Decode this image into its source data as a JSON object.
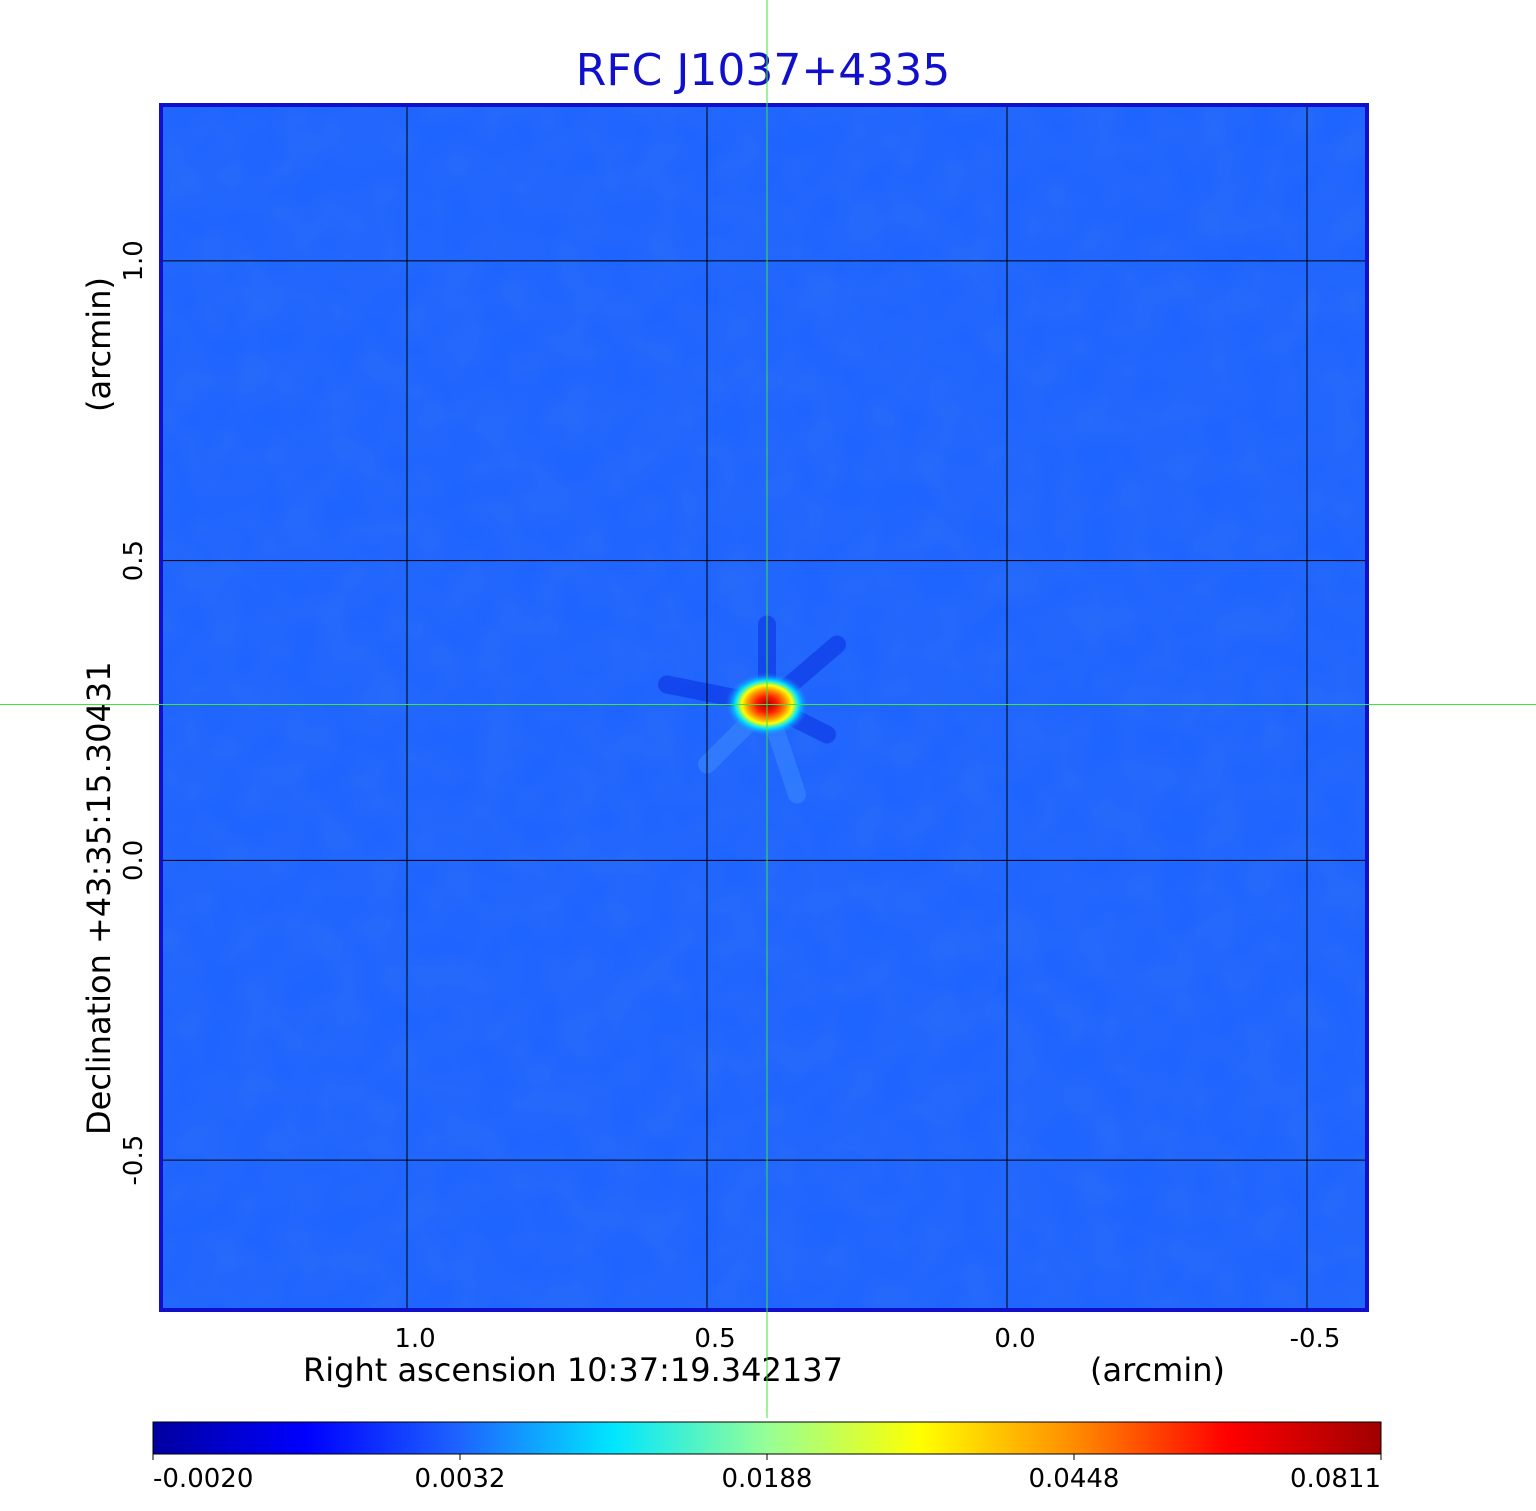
{
  "chart_data": {
    "type": "heatmap",
    "title": "RFC J1037+4335",
    "xlabel": "Right ascension  10:37:19.342137",
    "xunit": "(arcmin)",
    "ylabel": "Declination  +43:35:15.30431",
    "yunit": "(arcmin)",
    "x_ticks": [
      {
        "value": 1.0,
        "label": "1.0"
      },
      {
        "value": 0.5,
        "label": "0.5"
      },
      {
        "value": 0.0,
        "label": "0.0"
      },
      {
        "value": -0.5,
        "label": "-0.5"
      }
    ],
    "y_ticks": [
      {
        "value": 1.0,
        "label": "1.0"
      },
      {
        "value": 0.5,
        "label": "0.5"
      },
      {
        "value": 0.0,
        "label": "0.0"
      },
      {
        "value": -0.5,
        "label": "-0.5"
      }
    ],
    "xlim": [
      1.41,
      -0.6
    ],
    "ylim": [
      -0.75,
      1.26
    ],
    "grid": true,
    "crosshair": {
      "x": 0.4,
      "y": 0.26
    },
    "peak": {
      "x": 0.4,
      "y": 0.26
    },
    "colorbar": {
      "labels": [
        "-0.0020",
        "0.0032",
        "0.0188",
        "0.0448",
        "0.0811"
      ],
      "colors": [
        "#0000a0",
        "#0000ff",
        "#1e64ff",
        "#00e6ff",
        "#96ff96",
        "#ffff00",
        "#ff8c00",
        "#ff0000",
        "#a00000"
      ]
    },
    "colors": {
      "background": "#1e64ff",
      "frame": "#1010cc",
      "crosshair": "#3ce63c",
      "grid": "#000000"
    }
  }
}
